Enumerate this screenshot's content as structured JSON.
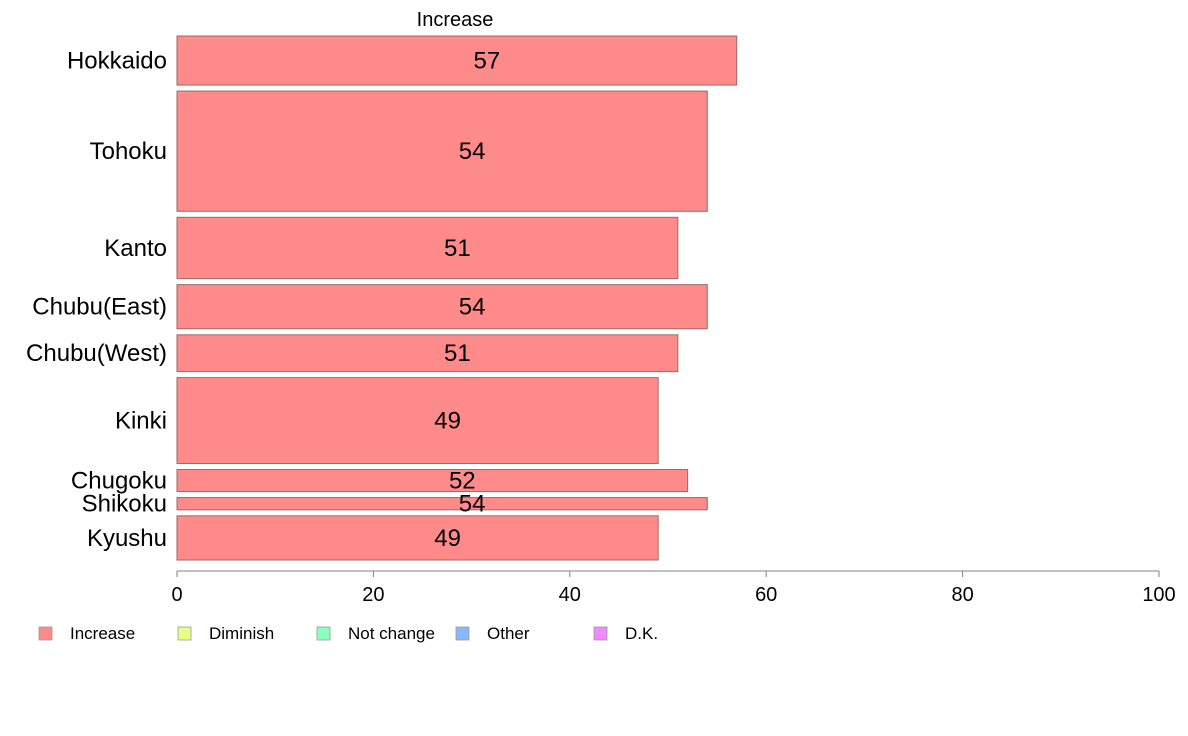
{
  "chart_data": {
    "type": "bar",
    "orientation": "horizontal",
    "series_title": "Increase",
    "categories": [
      "Hokkaido",
      "Tohoku",
      "Kanto",
      "Chubu(East)",
      "Chubu(West)",
      "Kinki",
      "Chugoku",
      "Shikoku",
      "Kyushu"
    ],
    "series": [
      {
        "name": "Increase",
        "color": "#ff8a8a",
        "values": [
          57,
          54,
          51,
          54,
          51,
          49,
          52,
          54,
          49
        ],
        "labels": [
          "57",
          "54",
          "51",
          "54",
          "51",
          "49",
          "52",
          "54",
          "49"
        ]
      }
    ],
    "category_weights": [
      1.0,
      2.45,
      1.25,
      0.9,
      0.75,
      1.75,
      0.45,
      0.25,
      0.9
    ],
    "xlim": [
      0,
      100
    ],
    "xticks": [
      0,
      20,
      40,
      60,
      80,
      100
    ],
    "xtick_labels": [
      "0",
      "20",
      "40",
      "60",
      "80",
      "100"
    ],
    "legend": [
      {
        "label": "Increase",
        "color": "#ff8a8a"
      },
      {
        "label": "Diminish",
        "color": "#e6ff8a"
      },
      {
        "label": "Not change",
        "color": "#8affc0"
      },
      {
        "label": "Other",
        "color": "#8ab8ff"
      },
      {
        "label": "D.K.",
        "color": "#f08aff"
      }
    ],
    "legend_position": "bottom-left",
    "grid": false
  }
}
